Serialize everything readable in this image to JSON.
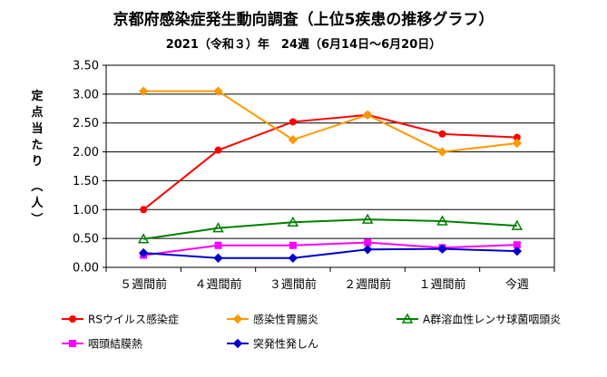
{
  "chart_data": {
    "type": "line",
    "title": "京都府感染症発生動向調査（上位5疾患の推移グラフ）",
    "subtitle": "2021（令和３）年　24週（6月14日～6月20日）",
    "ylabel_chars": [
      "定",
      "点",
      "当",
      "た",
      "り",
      "（",
      "人",
      "）"
    ],
    "categories": [
      "５週間前",
      "４週間前",
      "３週間前",
      "２週間前",
      "１週間前",
      "今週"
    ],
    "ylim": [
      0,
      3.5
    ],
    "yticks": [
      0,
      0.5,
      1.0,
      1.5,
      2.0,
      2.5,
      3.0,
      3.5
    ],
    "ytick_labels": [
      "0.00",
      "0.50",
      "1.00",
      "1.50",
      "2.00",
      "2.50",
      "3.00",
      "3.50"
    ],
    "grid": true,
    "legend_position": "bottom",
    "series": [
      {
        "name": "RSウイルス感染症",
        "color": "#ff0000",
        "marker": "circle",
        "values": [
          1.0,
          2.03,
          2.52,
          2.64,
          2.31,
          2.25
        ]
      },
      {
        "name": "感染性胃腸炎",
        "color": "#ff9900",
        "marker": "diamond",
        "values": [
          3.05,
          3.05,
          2.21,
          2.64,
          2.0,
          2.15
        ]
      },
      {
        "name": "A群溶血性レンサ球菌咽頭炎",
        "color": "#008000",
        "marker": "triangle",
        "values": [
          0.49,
          0.68,
          0.78,
          0.83,
          0.8,
          0.72
        ]
      },
      {
        "name": "咽頭結膜熱",
        "color": "#ff00ff",
        "marker": "square",
        "values": [
          0.21,
          0.38,
          0.38,
          0.43,
          0.34,
          0.39
        ]
      },
      {
        "name": "突発性発しん",
        "color": "#0000cc",
        "marker": "diamond",
        "values": [
          0.25,
          0.16,
          0.16,
          0.31,
          0.32,
          0.28
        ]
      }
    ]
  }
}
